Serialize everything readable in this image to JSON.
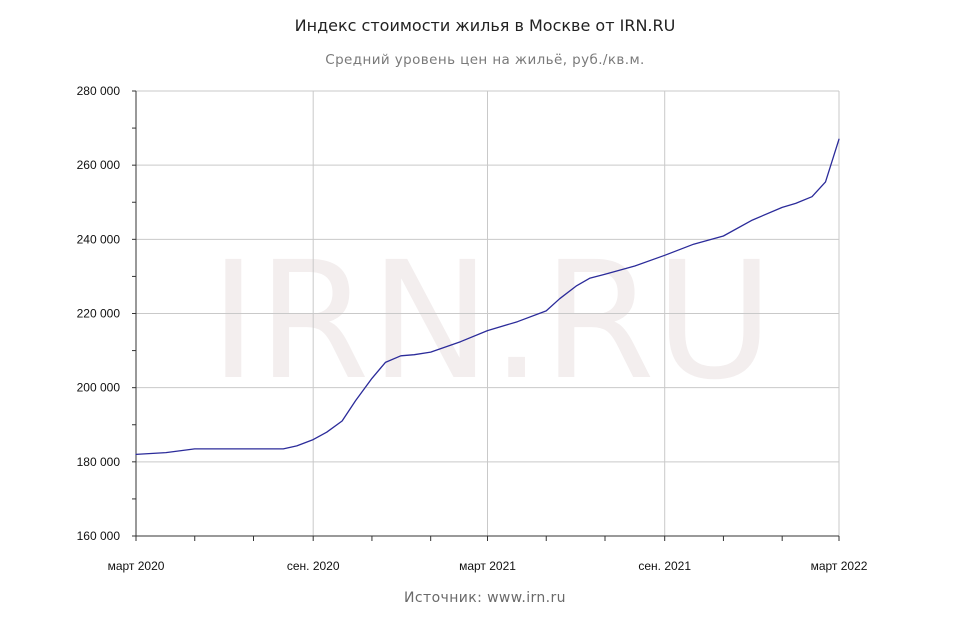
{
  "chart_data": {
    "type": "line",
    "title": "Индекс стоимости жилья в Москве от IRN.RU",
    "subtitle": "Средний уровень цен на жильё, руб./кв.м.",
    "source": "Источник: www.irn.ru",
    "watermark": "IRN.RU",
    "xlabel": "",
    "ylabel": "",
    "ylim": [
      160000,
      280000
    ],
    "xlim": [
      "2020-03",
      "2022-03"
    ],
    "y_ticks": [
      160000,
      180000,
      200000,
      220000,
      240000,
      260000,
      280000
    ],
    "y_tick_labels": [
      "160 000",
      "180 000",
      "200 000",
      "220 000",
      "240 000",
      "260 000",
      "280 000"
    ],
    "x_ticks": [
      "2020-03",
      "2020-09",
      "2021-03",
      "2021-09",
      "2022-03"
    ],
    "x_tick_labels": [
      "март 2020",
      "сен. 2020",
      "март 2021",
      "сен. 2021",
      "март 2022"
    ],
    "x_minor_ticks": [
      "2020-03",
      "2020-05",
      "2020-07",
      "2020-09",
      "2020-11",
      "2021-01",
      "2021-03",
      "2021-05",
      "2021-07",
      "2021-09",
      "2021-11",
      "2022-01",
      "2022-03"
    ],
    "grid": true,
    "line_color": "#2b2b9a",
    "series": [
      {
        "x": [
          "2020-03-01",
          "2020-04-01",
          "2020-05-01",
          "2020-06-01",
          "2020-07-01",
          "2020-08-01",
          "2020-08-15",
          "2020-09-01",
          "2020-09-15",
          "2020-10-01",
          "2020-10-15",
          "2020-11-01",
          "2020-11-15",
          "2020-12-01",
          "2020-12-15",
          "2021-01-01",
          "2021-02-01",
          "2021-03-01",
          "2021-04-01",
          "2021-05-01",
          "2021-05-15",
          "2021-06-01",
          "2021-06-15",
          "2021-07-01",
          "2021-08-01",
          "2021-09-01",
          "2021-10-01",
          "2021-11-01",
          "2021-12-01",
          "2022-01-01",
          "2022-01-15",
          "2022-02-01",
          "2022-02-15",
          "2022-03-01"
        ],
        "values": [
          182000,
          182500,
          183500,
          183500,
          183500,
          183500,
          184300,
          186000,
          188000,
          191000,
          196500,
          202500,
          206800,
          208600,
          208900,
          209600,
          212400,
          215400,
          217800,
          220700,
          224000,
          227400,
          229500,
          230600,
          232800,
          235700,
          238700,
          240900,
          245200,
          248600,
          249700,
          251500,
          255500,
          267000
        ]
      }
    ]
  }
}
